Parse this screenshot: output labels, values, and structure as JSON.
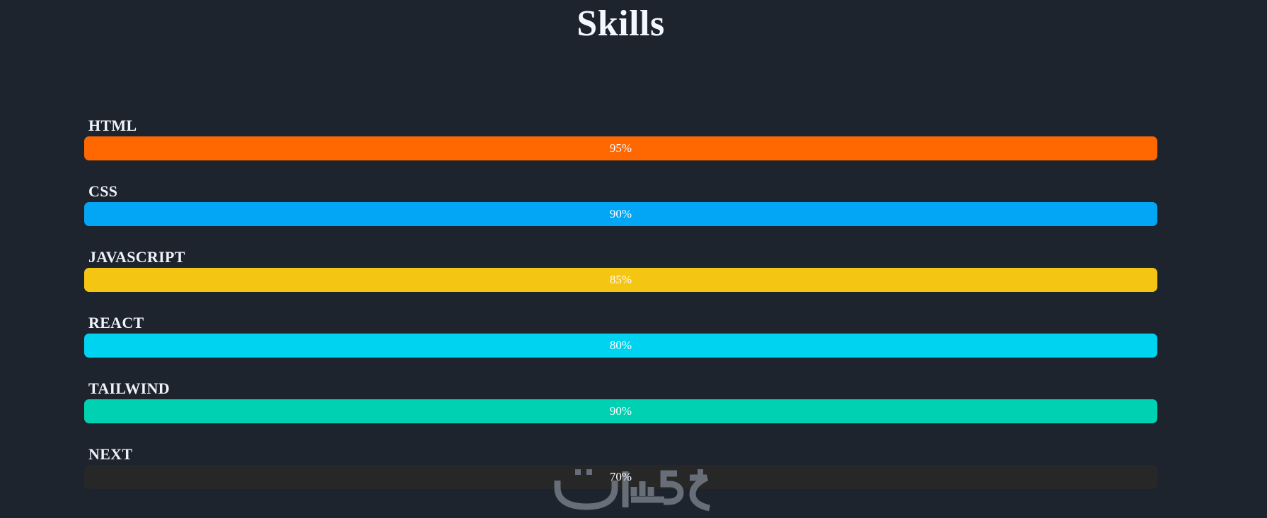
{
  "page": {
    "title": "Skills",
    "background": "#1e242e",
    "track_color": "#272727",
    "text_color": "#f2f8fd"
  },
  "skills": [
    {
      "label": "HTML",
      "percent": "95%",
      "value": 95,
      "color": "#ff6701",
      "filled": true
    },
    {
      "label": "CSS",
      "percent": "90%",
      "value": 90,
      "color": "#03a5f5",
      "filled": true
    },
    {
      "label": "JAVASCRIPT",
      "percent": "85%",
      "value": 85,
      "color": "#f5c513",
      "filled": true
    },
    {
      "label": "REACT",
      "percent": "80%",
      "value": 80,
      "color": "#00d3f0",
      "filled": true
    },
    {
      "label": "TAILWIND",
      "percent": "90%",
      "value": 90,
      "color": "#00d1b2",
      "filled": true
    },
    {
      "label": "NEXT",
      "percent": "70%",
      "value": 70,
      "color": "#272727",
      "filled": false
    }
  ],
  "watermark": {
    "text": "خمسات",
    "color": "#6b727c"
  },
  "chart_data": {
    "type": "bar",
    "orientation": "horizontal",
    "title": "Skills",
    "categories": [
      "HTML",
      "CSS",
      "JAVASCRIPT",
      "REACT",
      "TAILWIND",
      "NEXT"
    ],
    "values": [
      95,
      90,
      85,
      80,
      90,
      70
    ],
    "unit": "%",
    "value_labels": [
      "95%",
      "90%",
      "85%",
      "80%",
      "90%",
      "70%"
    ],
    "bar_colors": [
      "#ff6701",
      "#03a5f5",
      "#f5c513",
      "#00d3f0",
      "#00d1b2",
      "#272727"
    ],
    "xlim": [
      0,
      100
    ],
    "grid": false,
    "legend": false,
    "value_label_position": "center"
  }
}
